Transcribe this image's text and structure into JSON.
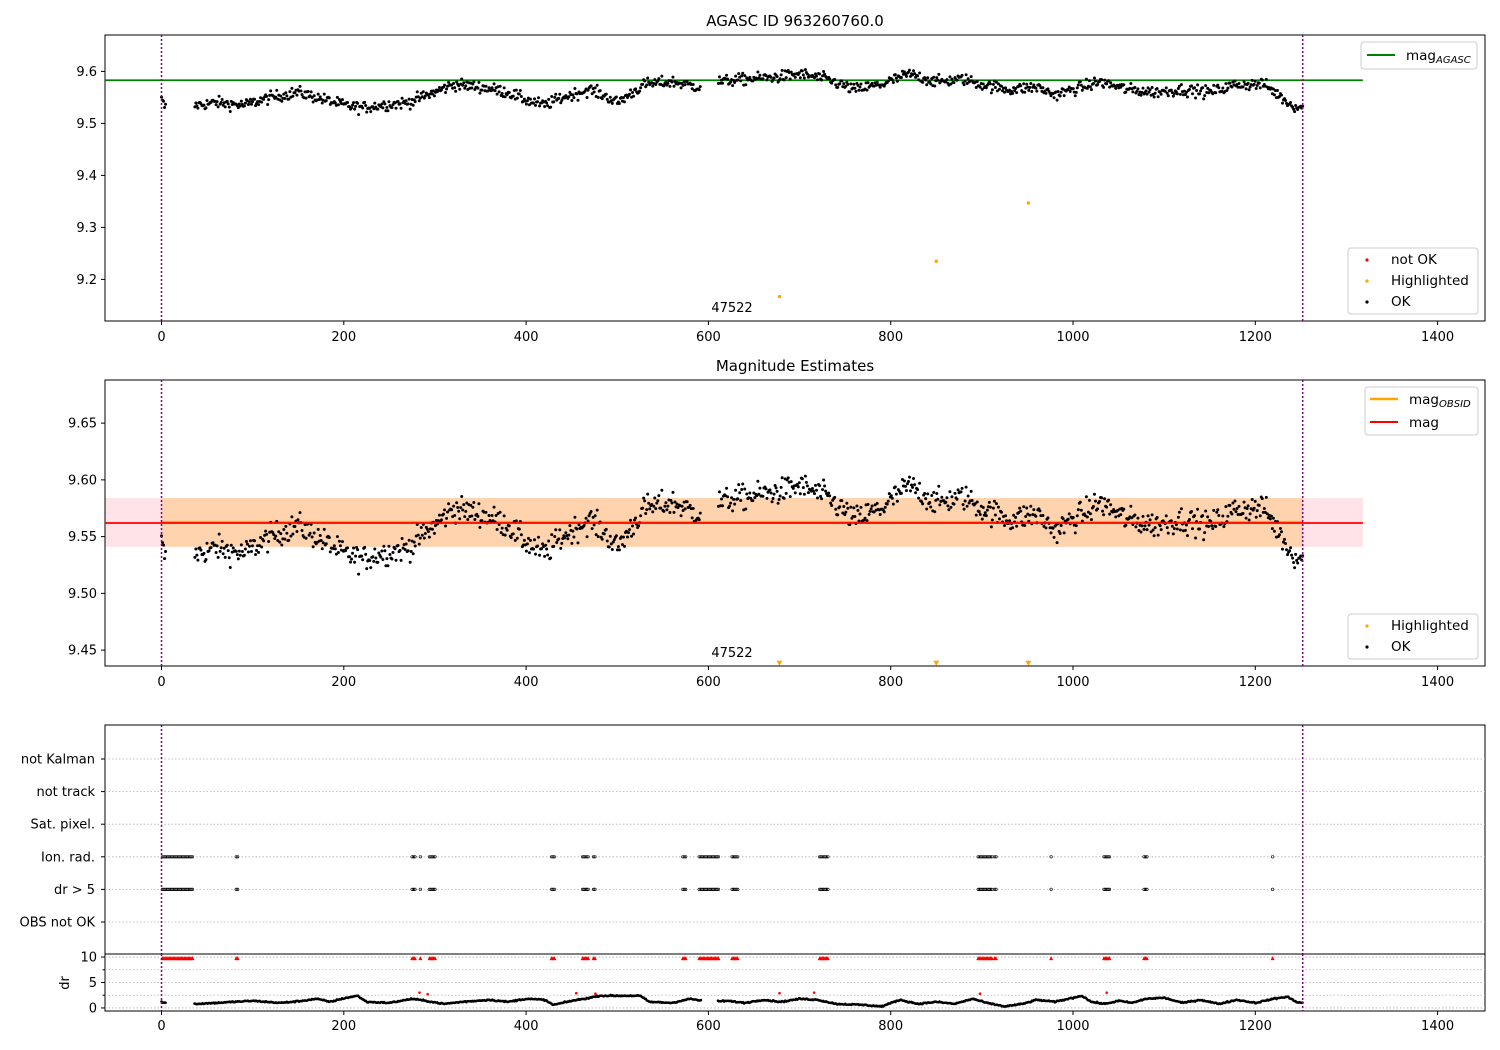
{
  "chart_data": [
    {
      "type": "scatter",
      "title": "AGASC ID 963260760.0",
      "xlim": [
        -62,
        1452
      ],
      "ylim": [
        9.12,
        9.67
      ],
      "xticks": [
        "0",
        "200",
        "400",
        "600",
        "800",
        "1000",
        "1200",
        "1400"
      ],
      "yticks": [
        "9.2",
        "9.3",
        "9.4",
        "9.5",
        "9.6"
      ],
      "ytick_values": [
        9.2,
        9.3,
        9.4,
        9.5,
        9.6
      ],
      "vlines_x": [
        0,
        1252
      ],
      "obsid_label": {
        "text": "47522",
        "x": 626,
        "y": 9.142
      },
      "series": [
        {
          "name": "mag_AGASC",
          "kind": "hline",
          "y": 9.583,
          "x": [
            -62,
            1318
          ],
          "color": "#008000"
        },
        {
          "name": "not OK",
          "kind": "points",
          "color": "#ff0000",
          "points": []
        },
        {
          "name": "Highlighted",
          "kind": "points",
          "color": "#ffa500",
          "points": [
            [
              678,
              9.167
            ],
            [
              850,
              9.235
            ],
            [
              951,
              9.347
            ]
          ]
        },
        {
          "name": "OK",
          "kind": "points",
          "color": "#000000",
          "trend": [
            [
              0,
              9.545
            ],
            [
              4,
              9.53
            ],
            [
              38,
              9.535
            ],
            [
              60,
              9.54
            ],
            [
              90,
              9.535
            ],
            [
              120,
              9.55
            ],
            [
              150,
              9.56
            ],
            [
              180,
              9.545
            ],
            [
              200,
              9.535
            ],
            [
              220,
              9.53
            ],
            [
              240,
              9.535
            ],
            [
              270,
              9.54
            ],
            [
              300,
              9.56
            ],
            [
              320,
              9.575
            ],
            [
              350,
              9.57
            ],
            [
              380,
              9.56
            ],
            [
              400,
              9.545
            ],
            [
              420,
              9.535
            ],
            [
              440,
              9.55
            ],
            [
              470,
              9.565
            ],
            [
              490,
              9.55
            ],
            [
              500,
              9.54
            ],
            [
              530,
              9.575
            ],
            [
              560,
              9.58
            ],
            [
              590,
              9.57
            ],
            [
              610,
              9.58
            ],
            [
              640,
              9.585
            ],
            [
              680,
              9.59
            ],
            [
              700,
              9.595
            ],
            [
              730,
              9.585
            ],
            [
              760,
              9.565
            ],
            [
              790,
              9.575
            ],
            [
              820,
              9.595
            ],
            [
              850,
              9.58
            ],
            [
              880,
              9.585
            ],
            [
              900,
              9.575
            ],
            [
              930,
              9.565
            ],
            [
              960,
              9.57
            ],
            [
              980,
              9.555
            ],
            [
              1010,
              9.57
            ],
            [
              1030,
              9.58
            ],
            [
              1060,
              9.565
            ],
            [
              1090,
              9.56
            ],
            [
              1120,
              9.565
            ],
            [
              1150,
              9.56
            ],
            [
              1180,
              9.575
            ],
            [
              1210,
              9.575
            ],
            [
              1225,
              9.555
            ],
            [
              1240,
              9.535
            ],
            [
              1252,
              9.53
            ]
          ],
          "gaps": [
            [
              5,
              36
            ],
            [
              592,
              610
            ]
          ],
          "n": 1130,
          "scatter": 0.011
        }
      ],
      "legends": [
        {
          "position": "upper-right",
          "items": [
            {
              "label": "mag",
              "sub": "AGASC",
              "marker": "line",
              "color": "#008000"
            }
          ]
        },
        {
          "position": "lower-right",
          "items": [
            {
              "label": "not OK",
              "marker": "dot",
              "color": "#ff0000"
            },
            {
              "label": "Highlighted",
              "marker": "dot",
              "color": "#ffa500"
            },
            {
              "label": "OK",
              "marker": "dot",
              "color": "#000000"
            }
          ]
        }
      ]
    },
    {
      "type": "scatter",
      "title": "Magnitude Estimates",
      "xlim": [
        -62,
        1452
      ],
      "ylim": [
        9.436,
        9.688
      ],
      "xticks": [
        "0",
        "200",
        "400",
        "600",
        "800",
        "1000",
        "1200",
        "1400"
      ],
      "yticks": [
        "9.45",
        "9.50",
        "9.55",
        "9.60",
        "9.65"
      ],
      "ytick_values": [
        9.45,
        9.5,
        9.55,
        9.6,
        9.65
      ],
      "vlines_x": [
        0,
        1252
      ],
      "obsid_label": {
        "text": "47522",
        "x": 626,
        "y": 9.444
      },
      "bands": [
        {
          "x": [
            -62,
            1318
          ],
          "y": [
            9.541,
            9.584
          ],
          "color": "#ffc0cb",
          "opacity": 0.45
        },
        {
          "x": [
            0,
            1252
          ],
          "y": [
            9.541,
            9.584
          ],
          "color": "#ffa500",
          "opacity": 0.25
        }
      ],
      "series": [
        {
          "name": "mag_OBSID",
          "kind": "hline",
          "y": 9.563,
          "x": [
            0,
            1252
          ],
          "color": "#ffa500"
        },
        {
          "name": "mag",
          "kind": "hline",
          "y": 9.562,
          "x": [
            -62,
            1318
          ],
          "color": "#ff0000"
        },
        {
          "name": "Highlighted",
          "kind": "triangles",
          "color": "#ffa500",
          "points": [
            [
              678,
              9.438
            ],
            [
              850,
              9.438
            ],
            [
              951,
              9.438
            ]
          ]
        },
        {
          "name": "OK",
          "kind": "points",
          "color": "#000000",
          "same_as_panel": 0
        }
      ],
      "legends": [
        {
          "position": "upper-right",
          "items": [
            {
              "label": "mag",
              "sub": "OBSID",
              "marker": "line",
              "color": "#ffa500"
            },
            {
              "label": "mag",
              "sub": "",
              "marker": "line",
              "color": "#ff0000"
            }
          ]
        },
        {
          "position": "lower-right",
          "items": [
            {
              "label": "Highlighted",
              "marker": "dot",
              "color": "#ffa500"
            },
            {
              "label": "OK",
              "marker": "dot",
              "color": "#000000"
            }
          ]
        }
      ]
    },
    {
      "type": "scatter",
      "title": "",
      "xlim": [
        -62,
        1452
      ],
      "categories": [
        "not Kalman",
        "not track",
        "Sat. pixel.",
        "Ion. rad.",
        "dr > 5",
        "OBS not OK"
      ],
      "flag_clusters": [
        [
          1,
          34
        ],
        [
          82,
          84
        ],
        [
          275,
          278
        ],
        [
          284,
          285
        ],
        [
          294,
          301
        ],
        [
          428,
          432
        ],
        [
          462,
          468
        ],
        [
          474,
          476
        ],
        [
          572,
          575
        ],
        [
          590,
          612
        ],
        [
          626,
          632
        ],
        [
          722,
          732
        ],
        [
          896,
          912
        ],
        [
          914,
          916
        ],
        [
          976,
          977
        ],
        [
          1034,
          1040
        ],
        [
          1078,
          1081
        ],
        [
          1219,
          1220
        ]
      ],
      "flag_rows": [
        "Ion. rad.",
        "dr > 5"
      ],
      "xticks": [
        "0",
        "200",
        "400",
        "600",
        "800",
        "1000",
        "1200",
        "1400"
      ],
      "vlines_x": [
        0,
        1252
      ]
    },
    {
      "type": "scatter",
      "title": "",
      "ylabel": "dr",
      "xlim": [
        -62,
        1452
      ],
      "ylim": [
        -0.6,
        10.6
      ],
      "yticks": [
        "0",
        "5",
        "10"
      ],
      "ytick_values": [
        0,
        5,
        10
      ],
      "minor_yticks": [
        2.5,
        7.5
      ],
      "xticks": [
        "0",
        "200",
        "400",
        "600",
        "800",
        "1000",
        "1200",
        "1400"
      ],
      "vlines_x": [
        0,
        1252
      ],
      "dr_trend": [
        [
          0,
          1.2
        ],
        [
          4,
          1.0
        ],
        [
          38,
          0.8
        ],
        [
          60,
          1.0
        ],
        [
          80,
          1.2
        ],
        [
          100,
          1.4
        ],
        [
          130,
          1.0
        ],
        [
          150,
          1.3
        ],
        [
          170,
          1.8
        ],
        [
          185,
          1.2
        ],
        [
          200,
          1.9
        ],
        [
          215,
          2.4
        ],
        [
          225,
          1.2
        ],
        [
          250,
          1.0
        ],
        [
          275,
          1.8
        ],
        [
          290,
          1.4
        ],
        [
          310,
          0.8
        ],
        [
          330,
          1.2
        ],
        [
          360,
          1.6
        ],
        [
          380,
          1.2
        ],
        [
          400,
          1.8
        ],
        [
          420,
          1.6
        ],
        [
          430,
          0.6
        ],
        [
          450,
          1.4
        ],
        [
          470,
          2.0
        ],
        [
          480,
          2.4
        ],
        [
          500,
          2.4
        ],
        [
          525,
          2.4
        ],
        [
          535,
          1.2
        ],
        [
          560,
          1.0
        ],
        [
          580,
          1.8
        ],
        [
          600,
          1.2
        ],
        [
          620,
          1.4
        ],
        [
          640,
          1.0
        ],
        [
          660,
          1.6
        ],
        [
          680,
          1.2
        ],
        [
          700,
          1.8
        ],
        [
          720,
          1.6
        ],
        [
          740,
          0.8
        ],
        [
          770,
          0.6
        ],
        [
          790,
          0.3
        ],
        [
          810,
          1.6
        ],
        [
          830,
          0.8
        ],
        [
          850,
          1.2
        ],
        [
          870,
          0.8
        ],
        [
          890,
          1.8
        ],
        [
          905,
          1.0
        ],
        [
          925,
          0.3
        ],
        [
          945,
          0.8
        ],
        [
          960,
          1.6
        ],
        [
          980,
          1.2
        ],
        [
          1000,
          2.0
        ],
        [
          1010,
          2.4
        ],
        [
          1020,
          1.2
        ],
        [
          1035,
          0.8
        ],
        [
          1050,
          1.4
        ],
        [
          1065,
          1.0
        ],
        [
          1080,
          1.8
        ],
        [
          1100,
          2.0
        ],
        [
          1120,
          1.0
        ],
        [
          1140,
          1.6
        ],
        [
          1160,
          0.8
        ],
        [
          1180,
          1.6
        ],
        [
          1200,
          1.0
        ],
        [
          1220,
          1.8
        ],
        [
          1235,
          2.2
        ],
        [
          1245,
          1.2
        ],
        [
          1252,
          1.0
        ]
      ],
      "dr_gaps": [
        [
          5,
          36
        ],
        [
          592,
          610
        ]
      ],
      "capped_value": 9.8,
      "highlighted_points": [
        [
          283,
          3.0
        ],
        [
          292,
          2.7
        ],
        [
          455,
          2.9
        ],
        [
          476,
          2.8
        ],
        [
          678,
          2.9
        ],
        [
          716,
          3.0
        ],
        [
          898,
          2.8
        ],
        [
          1037,
          3.0
        ]
      ]
    }
  ]
}
